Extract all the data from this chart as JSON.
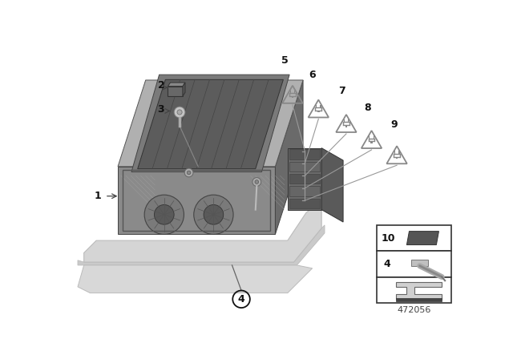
{
  "bg_color": "#ffffff",
  "diagram_id": "472056",
  "label_color": "#111111",
  "label_fontsize": 9,
  "tri_color": "#888888",
  "tri_edge": "#555555",
  "main_gray": "#909090",
  "dark_gray": "#6a6a6a",
  "light_gray": "#c8c8c8",
  "very_light": "#e0e0e0",
  "mid_gray": "#7a7a7a",
  "connector_gray": "#5a5a5a",
  "frame_gray": "#888888",
  "part2_color": "#707070",
  "part3_color": "#b0b0b0"
}
